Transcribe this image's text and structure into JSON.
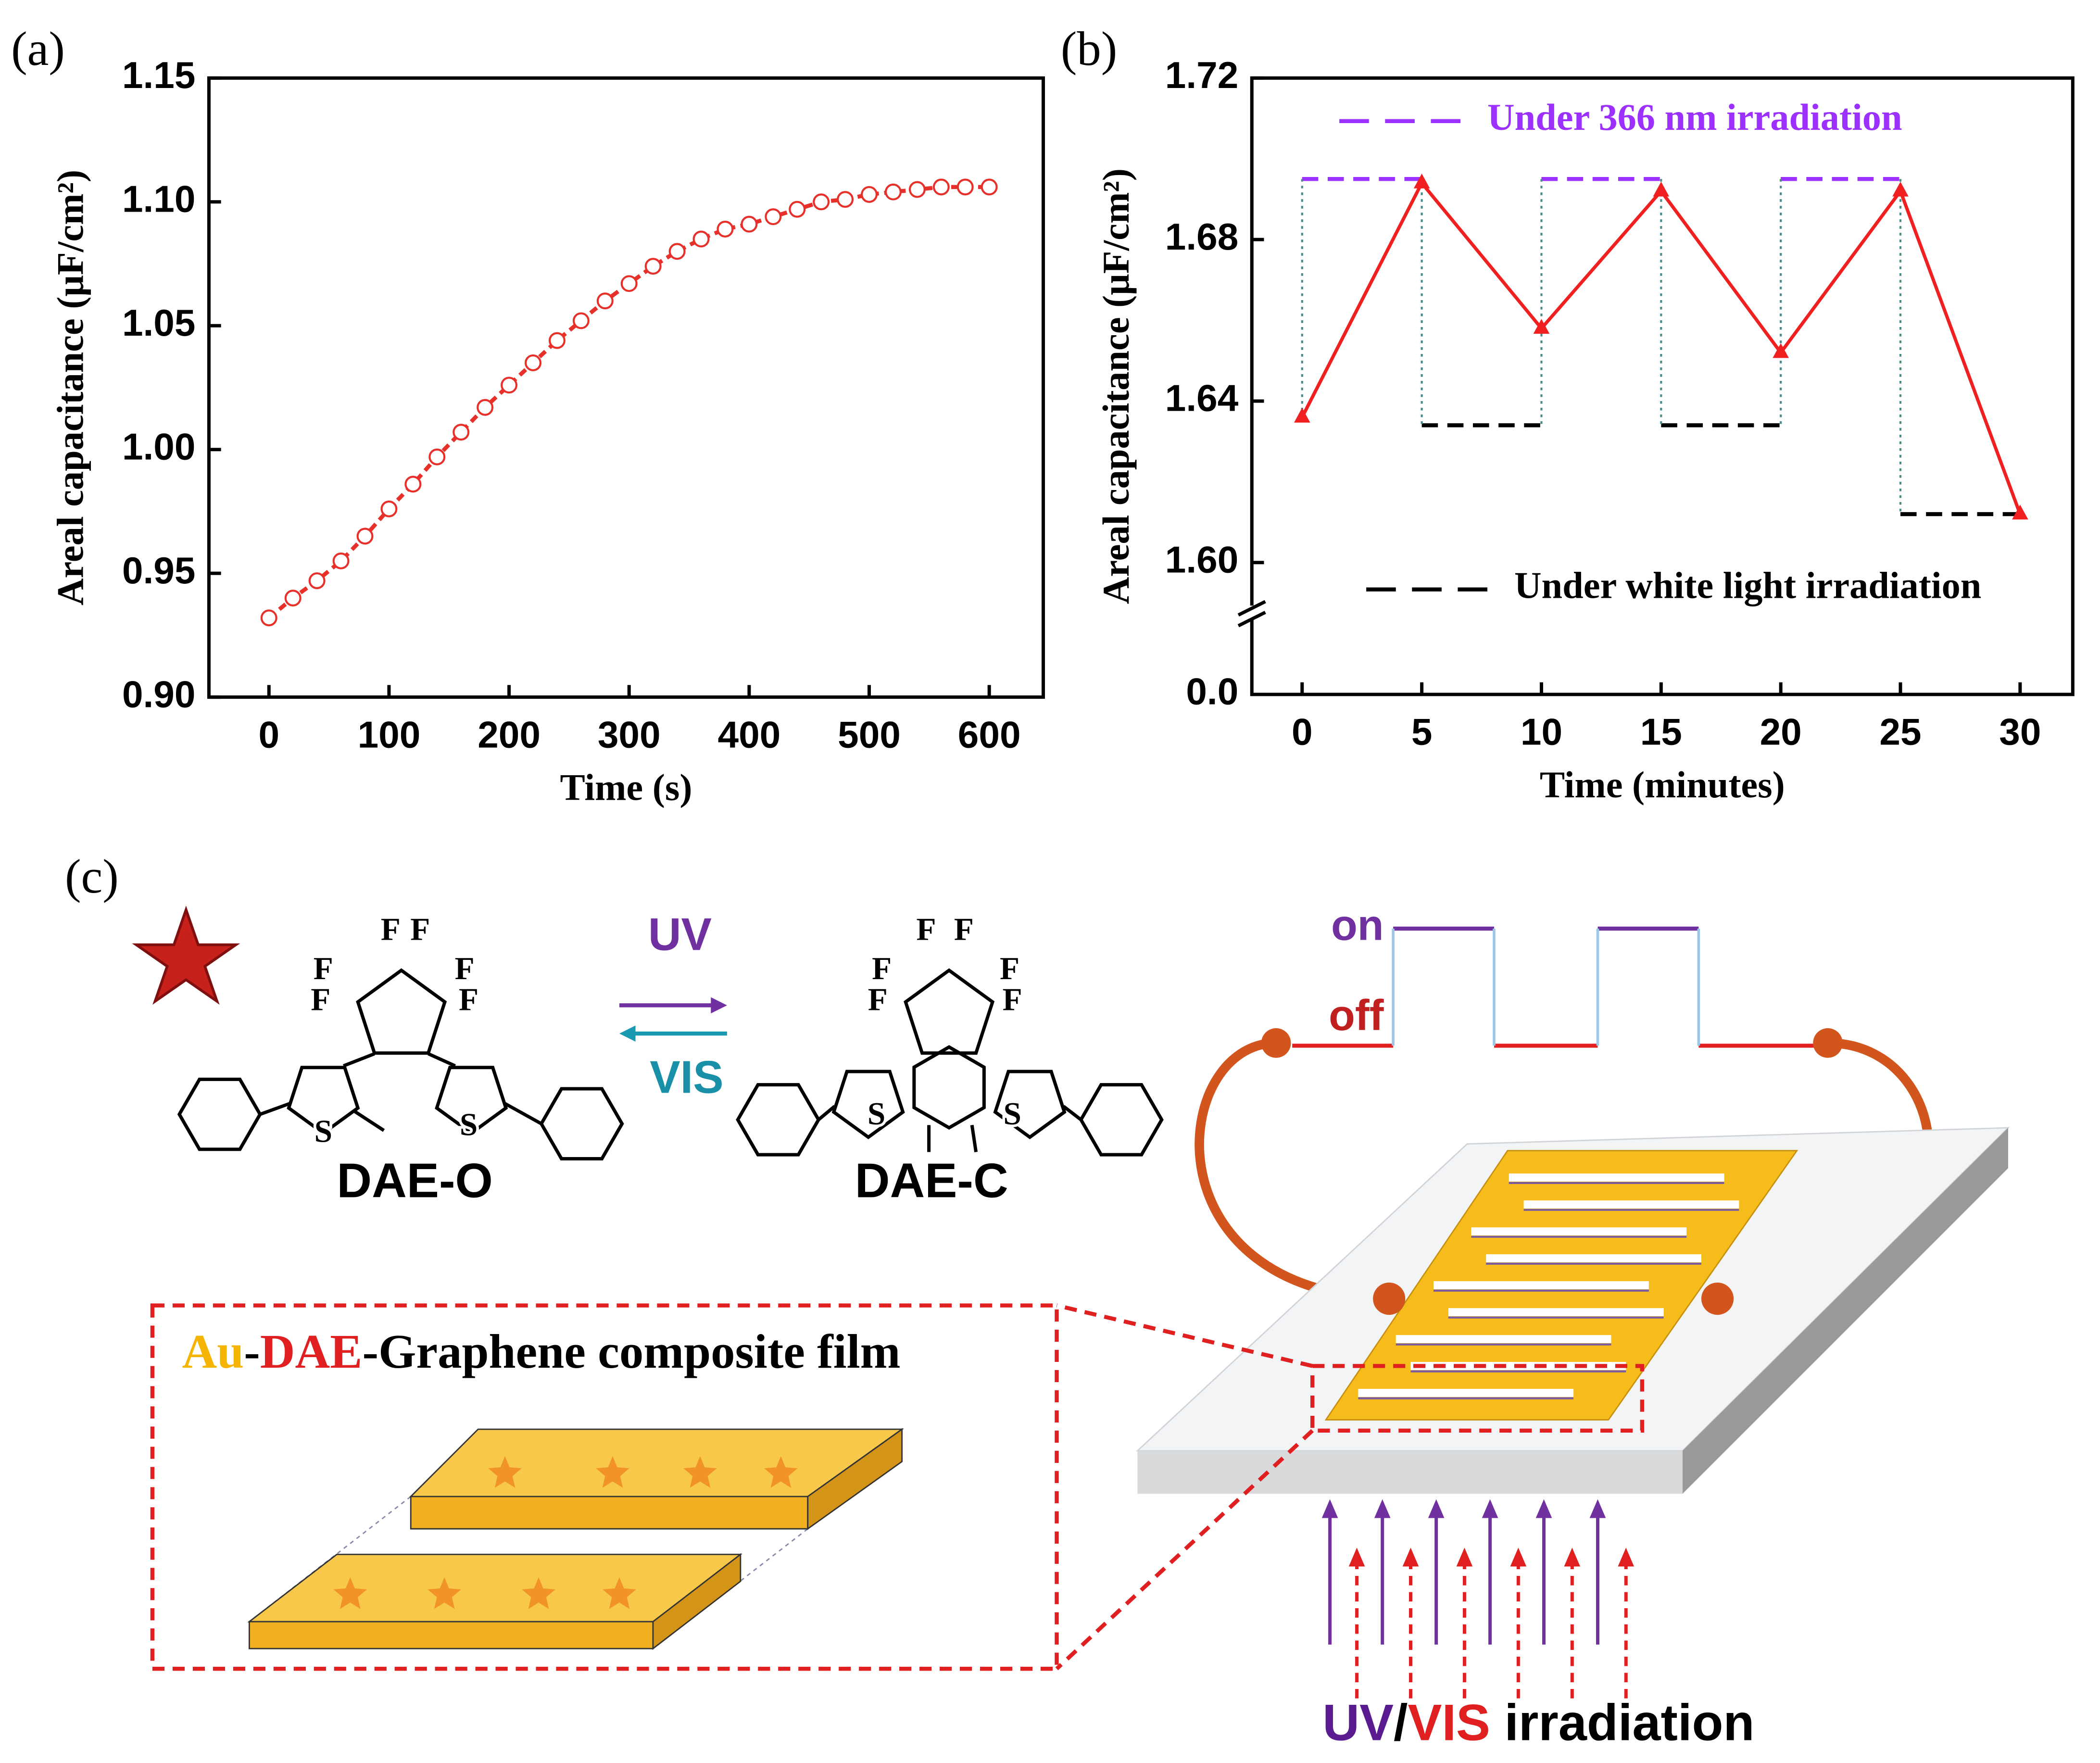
{
  "chart_data": [
    {
      "type": "line",
      "panel": "(a)",
      "xlabel": "Time (s)",
      "ylabel": "Areal capacitance (μF/cm²)",
      "x": [
        0,
        20,
        40,
        60,
        80,
        100,
        120,
        140,
        160,
        180,
        200,
        220,
        240,
        260,
        280,
        300,
        320,
        340,
        360,
        380,
        400,
        420,
        440,
        460,
        480,
        500,
        520,
        540,
        560,
        580,
        600
      ],
      "values": [
        0.932,
        0.94,
        0.947,
        0.955,
        0.965,
        0.976,
        0.986,
        0.997,
        1.007,
        1.017,
        1.026,
        1.035,
        1.044,
        1.052,
        1.06,
        1.067,
        1.074,
        1.08,
        1.085,
        1.089,
        1.091,
        1.094,
        1.097,
        1.1,
        1.101,
        1.103,
        1.104,
        1.105,
        1.106,
        1.106,
        1.106
      ],
      "color": "#e8302a",
      "marker": "circle-open",
      "line_style": "dashed",
      "xlim": [
        -50,
        645
      ],
      "xticks": [
        0,
        100,
        200,
        300,
        400,
        500,
        600
      ],
      "ylim": [
        0.9,
        1.15
      ],
      "yticks": [
        {
          "value": 0.9,
          "label": "0.90"
        },
        0.95,
        {
          "value": 1.0,
          "label": "1.00"
        },
        1.05,
        {
          "value": 1.1,
          "label": "1.10"
        },
        1.15
      ]
    },
    {
      "type": "line",
      "panel": "(b)",
      "xlabel": "Time (minutes)",
      "ylabel": "Areal capacitance (μF/cm²)",
      "x": [
        0,
        5,
        10,
        15,
        20,
        25,
        30
      ],
      "values": [
        1.636,
        1.694,
        1.658,
        1.692,
        1.652,
        1.692,
        1.612
      ],
      "color": "#f02020",
      "marker": "triangle",
      "line_style": "solid",
      "xlim": [
        -2.1,
        32.2
      ],
      "xticks": [
        0,
        5,
        10,
        15,
        20,
        25,
        30
      ],
      "ylim": [
        0,
        1.72
      ],
      "ybreak": [
        0,
        1.6
      ],
      "yticks": [
        {
          "value": 0,
          "label": "0.0"
        },
        {
          "value": 1.6,
          "label": "1.60"
        },
        1.64,
        1.68,
        1.72
      ],
      "reference_lines": [
        {
          "name": "Under 366 nm irradiation",
          "color": "#9b30ff",
          "segments": [
            [
              0,
              5,
              1.695
            ],
            [
              10,
              15,
              1.695
            ],
            [
              20,
              25,
              1.695
            ]
          ]
        },
        {
          "name": "Under white light irradiation",
          "color": "#000000",
          "segments": [
            [
              5,
              10,
              1.634
            ],
            [
              15,
              20,
              1.634
            ],
            [
              25,
              30,
              1.612
            ]
          ]
        }
      ]
    }
  ],
  "diagram": {
    "panel": "(c)",
    "forward": "UV",
    "backward": "VIS",
    "reactant": "DAE-O",
    "product": "DAE-C",
    "reactant_atoms": [
      "F",
      "F",
      "F",
      "F",
      "F",
      "F",
      "S",
      "S"
    ],
    "product_atoms": [
      "F",
      "F",
      "F",
      "F",
      "F",
      "F",
      "S",
      "S"
    ],
    "signal_high": "on",
    "signal_low": "off",
    "film_title": [
      "Au",
      "-",
      "DAE",
      "-Graphene composite film"
    ],
    "irradiation": [
      "UV",
      "/",
      "VIS",
      " irradiation"
    ]
  }
}
